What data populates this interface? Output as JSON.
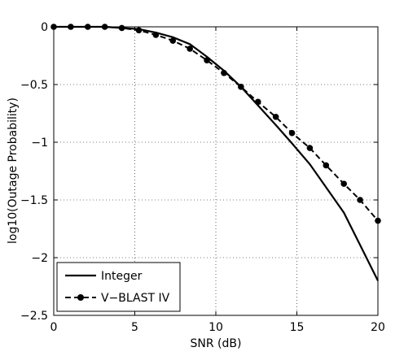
{
  "chart_data": {
    "type": "line",
    "title": "",
    "xlabel": "SNR (dB)",
    "ylabel": "log10(Outage Probability)",
    "xlim": [
      0,
      20
    ],
    "ylim": [
      -2.5,
      0
    ],
    "grid": true,
    "legend_position": "bottom-left",
    "x_ticks": [
      0,
      5,
      10,
      15,
      20
    ],
    "x_tick_labels": [
      "0",
      "5",
      "10",
      "15",
      "20"
    ],
    "y_ticks": [
      0,
      -0.5,
      -1,
      -1.5,
      -2,
      -2.5
    ],
    "y_tick_labels": [
      "0",
      "−0.5",
      "−1",
      "−1.5",
      "−2",
      "−2.5"
    ],
    "series": [
      {
        "name": "Integer",
        "style": "solid",
        "marker": "none",
        "color": "#000000",
        "x": [
          0,
          1.05,
          2.1,
          3.15,
          4.2,
          5.25,
          6.3,
          7.35,
          8.4,
          9.45,
          10.5,
          11.55,
          12.6,
          13.7,
          14.7,
          15.8,
          16.8,
          17.9,
          18.9,
          20
        ],
        "y": [
          0,
          0,
          0,
          0,
          -0.01,
          -0.02,
          -0.05,
          -0.09,
          -0.15,
          -0.26,
          -0.38,
          -0.52,
          -0.68,
          -0.85,
          -1.01,
          -1.19,
          -1.39,
          -1.61,
          -1.89,
          -2.2
        ]
      },
      {
        "name": "V−BLAST IV",
        "style": "dashed",
        "marker": "circle",
        "color": "#000000",
        "x": [
          0,
          1.05,
          2.1,
          3.15,
          4.2,
          5.25,
          6.3,
          7.35,
          8.4,
          9.45,
          10.5,
          11.55,
          12.6,
          13.7,
          14.7,
          15.8,
          16.8,
          17.9,
          18.9,
          20
        ],
        "y": [
          0,
          0,
          0,
          0,
          -0.01,
          -0.03,
          -0.07,
          -0.12,
          -0.19,
          -0.29,
          -0.4,
          -0.52,
          -0.65,
          -0.78,
          -0.92,
          -1.05,
          -1.2,
          -1.36,
          -1.5,
          -1.68
        ]
      }
    ]
  }
}
